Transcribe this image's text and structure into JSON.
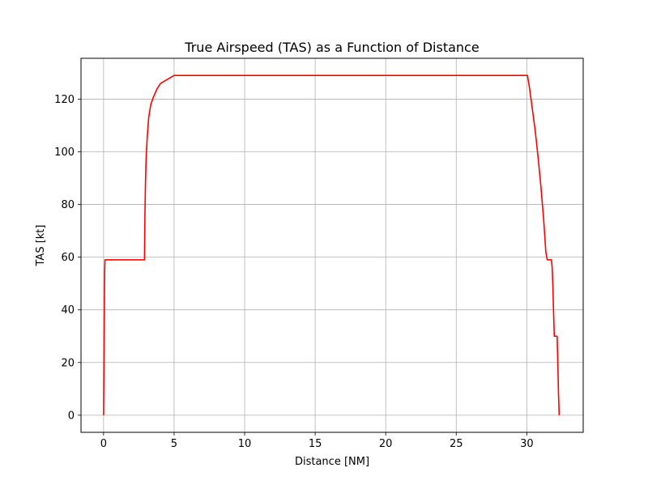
{
  "chart_data": {
    "type": "line",
    "title": "True Airspeed (TAS) as a Function of Distance",
    "xlabel": "Distance [NM]",
    "ylabel": "TAS [kt]",
    "xlim": [
      -1.6,
      34.0
    ],
    "ylim": [
      -6.5,
      135.5
    ],
    "xticks": [
      0,
      5,
      10,
      15,
      20,
      25,
      30
    ],
    "yticks": [
      0,
      20,
      40,
      60,
      80,
      100,
      120
    ],
    "xtick_labels": [
      "0",
      "5",
      "10",
      "15",
      "20",
      "25",
      "30"
    ],
    "ytick_labels": [
      "0",
      "20",
      "40",
      "60",
      "80",
      "100",
      "120"
    ],
    "grid": true,
    "legend": "none",
    "series": [
      {
        "color": "#ff0000",
        "x": [
          0.0,
          0.02,
          0.04,
          0.06,
          0.08,
          0.1,
          2.9,
          2.93,
          2.97,
          3.02,
          3.1,
          3.2,
          3.35,
          3.55,
          3.8,
          4.05,
          5.0,
          30.05,
          30.2,
          30.4,
          30.6,
          30.8,
          31.0,
          31.2,
          31.35,
          31.45,
          31.5,
          31.6,
          31.75,
          31.8,
          31.85,
          31.9,
          31.95,
          32.05,
          32.15,
          32.2,
          32.25,
          32.3
        ],
        "y": [
          0,
          15,
          30,
          45,
          55,
          59,
          59,
          75,
          88,
          98,
          106,
          113,
          118,
          121,
          124,
          126,
          129,
          129,
          124,
          116,
          108,
          98,
          87,
          74,
          62,
          59,
          59,
          59,
          59,
          56,
          49,
          39,
          30,
          30,
          30,
          20,
          8,
          0
        ]
      }
    ]
  }
}
